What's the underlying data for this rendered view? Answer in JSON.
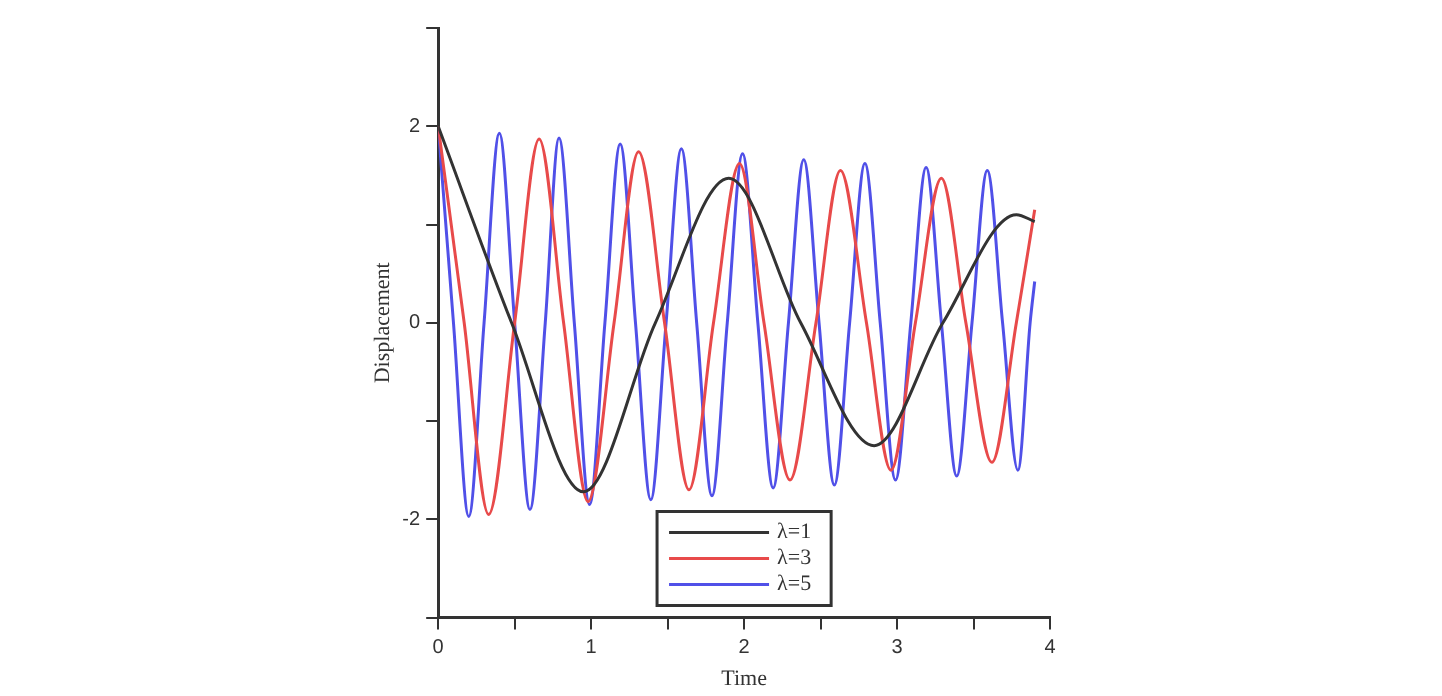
{
  "chart_data": {
    "type": "line",
    "xlabel": "Time",
    "ylabel": "Displacement",
    "xlim": [
      0,
      4
    ],
    "ylim": [
      -3,
      3
    ],
    "xticks": [
      0,
      {
        "value": 0.5,
        "label": null
      },
      1,
      {
        "value": 1.5,
        "label": null
      },
      2,
      {
        "value": 2.5,
        "label": null
      },
      3,
      {
        "value": 3.5,
        "label": null
      },
      4
    ],
    "yticks": [
      {
        "value": -3,
        "label": null
      },
      -2,
      {
        "value": -1,
        "label": null
      },
      0,
      {
        "value": 1,
        "label": null
      },
      2,
      {
        "value": 3,
        "label": null
      }
    ],
    "grid": false,
    "legend": "bottom",
    "marker": "none",
    "line_style": "solid",
    "series": [
      {
        "name": "λ=1",
        "color": "#333333",
        "x": [
          0,
          0.48,
          0.95,
          1.42,
          1.9,
          2.37,
          2.85,
          3.3,
          3.78,
          3.9
        ],
        "values": [
          2,
          0,
          -1.72,
          0,
          1.47,
          0,
          -1.25,
          0,
          1.1,
          1.03
        ]
      },
      {
        "name": "λ=3",
        "color": "#e84a4a",
        "x": [
          0,
          0.17,
          0.33,
          0.5,
          0.66,
          0.82,
          0.98,
          1.15,
          1.31,
          1.48,
          1.64,
          1.8,
          1.97,
          2.13,
          2.3,
          2.47,
          2.63,
          2.8,
          2.96,
          3.12,
          3.29,
          3.45,
          3.62,
          3.78,
          3.9
        ],
        "values": [
          2,
          0,
          -1.95,
          0,
          1.87,
          0,
          -1.82,
          0,
          1.74,
          0,
          -1.7,
          0,
          1.62,
          0,
          -1.6,
          0,
          1.55,
          0,
          -1.5,
          0,
          1.47,
          0,
          -1.42,
          0,
          1.15
        ]
      },
      {
        "name": "λ=5",
        "color": "#5050e8",
        "x": [
          0,
          0.1,
          0.2,
          0.3,
          0.4,
          0.5,
          0.6,
          0.7,
          0.79,
          0.89,
          0.99,
          1.09,
          1.19,
          1.29,
          1.39,
          1.49,
          1.59,
          1.69,
          1.79,
          1.89,
          1.99,
          2.09,
          2.19,
          2.29,
          2.39,
          2.49,
          2.59,
          2.69,
          2.79,
          2.89,
          2.99,
          3.09,
          3.19,
          3.29,
          3.39,
          3.49,
          3.59,
          3.69,
          3.79,
          3.87,
          3.9
        ],
        "values": [
          2,
          0,
          -1.97,
          0,
          1.93,
          0,
          -1.9,
          0,
          1.88,
          0,
          -1.85,
          0,
          1.82,
          0,
          -1.8,
          0,
          1.77,
          0,
          -1.76,
          0,
          1.72,
          0,
          -1.68,
          0,
          1.66,
          0,
          -1.65,
          0,
          1.62,
          0,
          -1.6,
          0,
          1.58,
          0,
          -1.56,
          0,
          1.55,
          0,
          -1.5,
          0,
          0.42
        ]
      }
    ]
  }
}
